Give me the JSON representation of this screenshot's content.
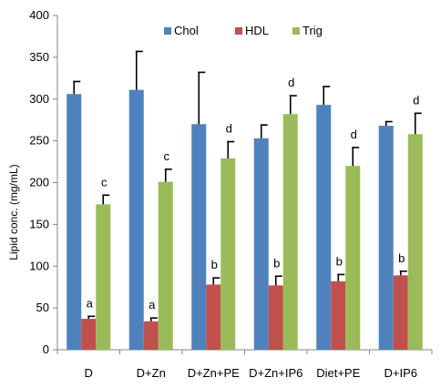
{
  "chart_data": {
    "type": "bar",
    "title": "",
    "xlabel": "",
    "ylabel": "Lipid conc. (mg/mL)",
    "ylim": [
      0,
      400
    ],
    "yticks": [
      0,
      50,
      100,
      150,
      200,
      250,
      300,
      350,
      400
    ],
    "grid": false,
    "legend_position": "top-right",
    "categories": [
      "D",
      "D+Zn",
      "D+Zn+PE",
      "D+Zn+IP6",
      "Diet+PE",
      "D+IP6"
    ],
    "series": [
      {
        "name": "Chol",
        "color": "#4F81BD",
        "values": [
          306,
          311,
          270,
          253,
          293,
          268
        ],
        "errors": [
          15,
          46,
          62,
          16,
          22,
          5
        ],
        "annotations": [
          "",
          "",
          "",
          "",
          "",
          ""
        ]
      },
      {
        "name": "HDL",
        "color": "#C0504D",
        "values": [
          37,
          34,
          78,
          77,
          82,
          89
        ],
        "errors": [
          3,
          4,
          8,
          11,
          8,
          5
        ],
        "annotations": [
          "a",
          "a",
          "b",
          "b",
          "b",
          "b"
        ]
      },
      {
        "name": "Trig",
        "color": "#9BBB59",
        "values": [
          174,
          201,
          229,
          282,
          220,
          258
        ],
        "errors": [
          11,
          15,
          20,
          22,
          22,
          25
        ],
        "annotations": [
          "c",
          "c",
          "d",
          "d",
          "d",
          "d"
        ]
      }
    ]
  }
}
